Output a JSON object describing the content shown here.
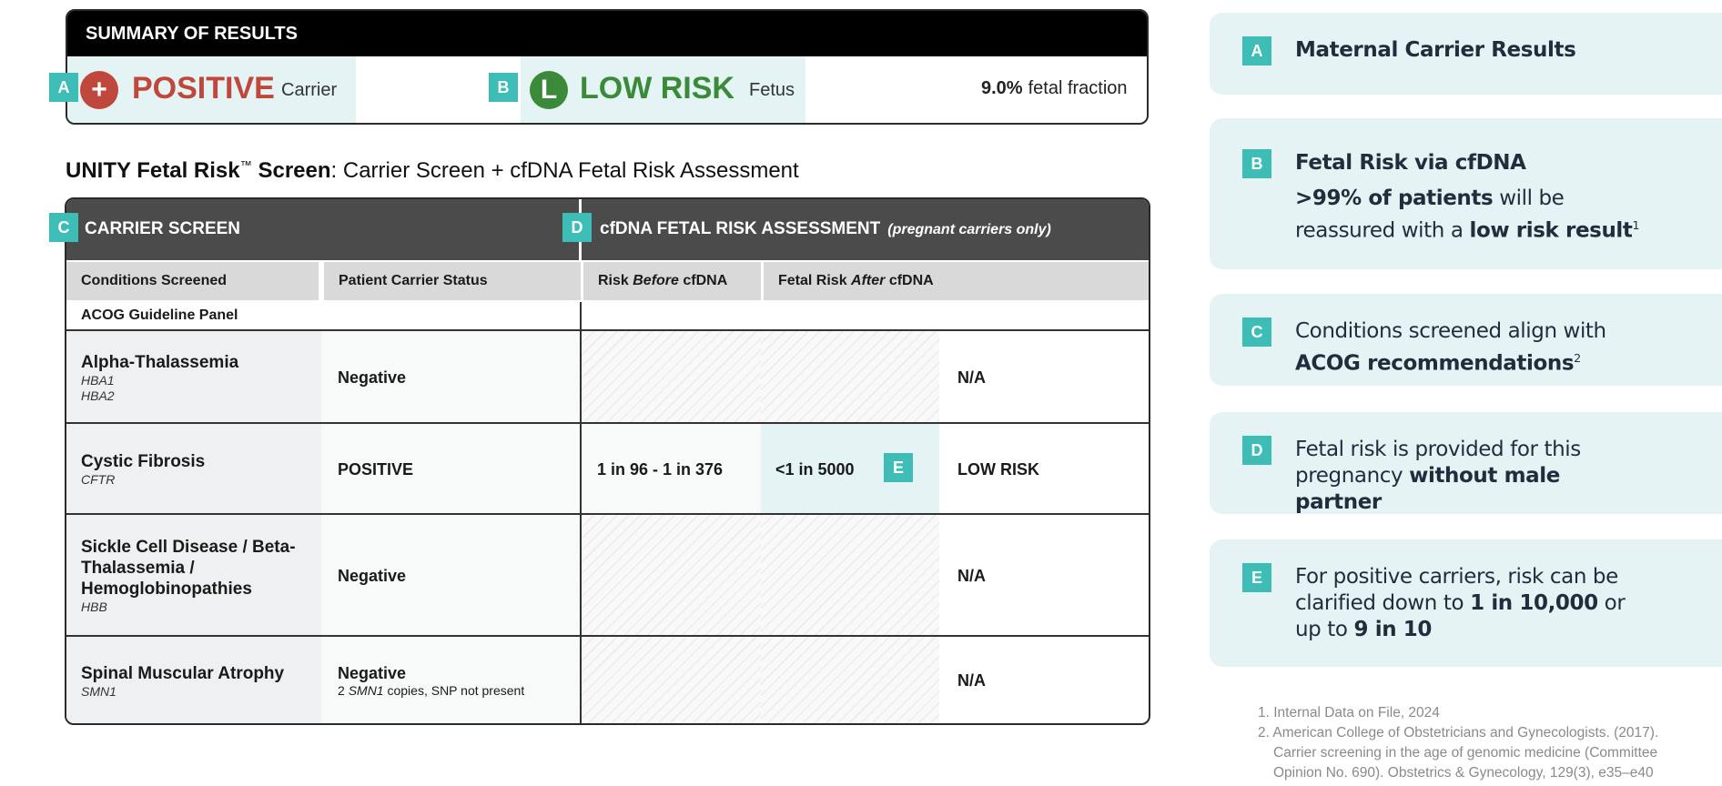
{
  "summary": {
    "title": "SUMMARY OF RESULTS",
    "maternal": {
      "badge": "A",
      "icon": "+",
      "result": "POSITIVE",
      "label": "Carrier"
    },
    "fetal": {
      "badge": "B",
      "icon": "L",
      "result": "LOW RISK",
      "label": "Fetus"
    },
    "fraction": {
      "value": "9.0%",
      "label": "fetal fraction"
    }
  },
  "heading": [
    {
      "text": "UNITY Fetal Risk",
      "bold": true
    },
    {
      "text": "™",
      "sup": true
    },
    {
      "text": " Screen",
      "bold": true
    },
    {
      "text": ": Carrier Screen + cfDNA Fetal Risk Assessment"
    }
  ],
  "table": {
    "carrier_header": {
      "badge": "C",
      "text": "CARRIER SCREEN"
    },
    "cfdna_header": {
      "badge": "D",
      "text": "cfDNA FETAL RISK ASSESSMENT",
      "note": "(pregnant carriers only)"
    },
    "columns": [
      [
        {
          "text": "Conditions Screened"
        }
      ],
      [
        {
          "text": "Patient Carrier Status"
        }
      ],
      [
        {
          "text": "Risk "
        },
        {
          "text": "Before",
          "italic": true
        },
        {
          "text": " cfDNA"
        }
      ],
      [
        {
          "text": "Fetal Risk "
        },
        {
          "text": "After",
          "italic": true
        },
        {
          "text": " cfDNA"
        }
      ]
    ],
    "panel": "ACOG Guideline Panel",
    "rows": [
      {
        "condition": "Alpha-Thalassemia",
        "genes": [
          "HBA1",
          "HBA2"
        ],
        "status": "Negative",
        "result": "N/A"
      },
      {
        "condition": "Cystic Fibrosis",
        "genes": [
          "CFTR"
        ],
        "status": "POSITIVE",
        "risk_before": "1 in 96 - 1 in 376",
        "risk_after": "<1 in 5000",
        "badge": "E",
        "result": "LOW RISK"
      },
      {
        "condition": "Sickle Cell Disease / Beta-Thalassemia / Hemoglobinopathies",
        "genes": [
          "HBB"
        ],
        "status": "Negative",
        "result": "N/A"
      },
      {
        "condition": "Spinal Muscular Atrophy",
        "genes": [
          "SMN1"
        ],
        "status": "Negative",
        "status_note": [
          {
            "text": "2 "
          },
          {
            "text": "SMN1",
            "italic": true
          },
          {
            "text": " copies, SNP not present"
          }
        ],
        "result": "N/A"
      }
    ]
  },
  "notes": [
    {
      "badge": "A",
      "body": [
        {
          "text": "Maternal Carrier Results",
          "bold": true
        }
      ]
    },
    {
      "badge": "B",
      "title": [
        {
          "text": "Fetal Risk via cfDNA",
          "bold": true
        }
      ],
      "body": [
        {
          "text": ">99% of patients",
          "bold": true
        },
        {
          "text": " will be reassured with a "
        },
        {
          "text": "low risk result",
          "bold": true
        },
        {
          "text": "1",
          "sup": true
        }
      ]
    },
    {
      "badge": "C",
      "body": [
        {
          "text": "Conditions screened align with "
        },
        {
          "text": "ACOG recommendations",
          "bold": true
        },
        {
          "text": "2",
          "sup": true
        }
      ]
    },
    {
      "badge": "D",
      "body": [
        {
          "text": "Fetal risk is provided for this pregnancy "
        },
        {
          "text": "without male partner",
          "bold": true
        }
      ]
    },
    {
      "badge": "E",
      "body": [
        {
          "text": "For positive carriers, risk can be clarified down to "
        },
        {
          "text": "1 in 10,000",
          "bold": true
        },
        {
          "text": " or up to "
        },
        {
          "text": "9 in 10",
          "bold": true
        }
      ]
    }
  ],
  "footnotes": [
    "1. Internal Data on File, 2024",
    "2. American College of Obstetricians and Gynecologists. (2017). Carrier screening in the age of genomic medicine (Committee Opinion No. 690). Obstetrics & Gynecology, 129(3), e35–e40"
  ]
}
